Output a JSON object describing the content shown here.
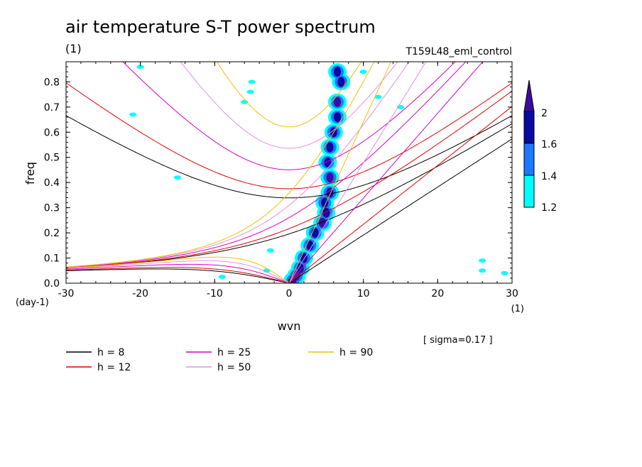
{
  "chart_data": {
    "type": "contour",
    "title": "air temperature S-T power spectrum",
    "subtitle": "(1)",
    "run_label": "T159L48_eml_control",
    "xlabel": "wvn",
    "ylabel": "freq",
    "x_unit": "(1)",
    "y_unit": "(day-1)",
    "xlim": [
      -30,
      30
    ],
    "ylim": [
      0,
      0.88
    ],
    "x_ticks": [
      -30,
      -20,
      -10,
      0,
      10,
      20,
      30
    ],
    "x_tick_labels": [
      "-30",
      "-20",
      "-10",
      "0",
      "10",
      "20",
      "30"
    ],
    "y_ticks": [
      0,
      0.1,
      0.2,
      0.3,
      0.4,
      0.5,
      0.6,
      0.7,
      0.8
    ],
    "y_tick_labels": [
      "0.0",
      "0.1",
      "0.2",
      "0.3",
      "0.4",
      "0.5",
      "0.6",
      "0.7",
      "0.8"
    ],
    "note": "[ sigma=0.17 ]",
    "colorbar": {
      "levels": [
        1.2,
        1.4,
        1.6,
        2
      ],
      "labels": [
        "1.2",
        "1.4",
        "1.6",
        "2"
      ],
      "colors": [
        "#00ffff",
        "#1e78ff",
        "#0a0aa0",
        "#3c0ca0"
      ]
    },
    "dispersion_curves": [
      {
        "name": "h =  8",
        "h": 8,
        "color": "#000000"
      },
      {
        "name": "h = 12",
        "h": 12,
        "color": "#e00000"
      },
      {
        "name": "h = 25",
        "h": 25,
        "color": "#d800c8"
      },
      {
        "name": "h = 50",
        "h": 50,
        "color": "#e090e0"
      },
      {
        "name": "h = 90",
        "h": 90,
        "color": "#f0c000"
      }
    ],
    "spectral_ridge": [
      {
        "x": 0.5,
        "y": 0.01,
        "level": 2.0
      },
      {
        "x": 1.0,
        "y": 0.03,
        "level": 2.0
      },
      {
        "x": 1.5,
        "y": 0.06,
        "level": 1.6
      },
      {
        "x": 2.0,
        "y": 0.1,
        "level": 1.6
      },
      {
        "x": 2.8,
        "y": 0.15,
        "level": 1.6
      },
      {
        "x": 3.5,
        "y": 0.2,
        "level": 1.6
      },
      {
        "x": 4.5,
        "y": 0.24,
        "level": 2.0
      },
      {
        "x": 5.0,
        "y": 0.28,
        "level": 1.6
      },
      {
        "x": 4.8,
        "y": 0.32,
        "level": 1.6
      },
      {
        "x": 5.5,
        "y": 0.36,
        "level": 1.6
      },
      {
        "x": 5.5,
        "y": 0.42,
        "level": 2.0
      },
      {
        "x": 5.2,
        "y": 0.48,
        "level": 1.6
      },
      {
        "x": 5.5,
        "y": 0.54,
        "level": 1.6
      },
      {
        "x": 6.0,
        "y": 0.6,
        "level": 1.6
      },
      {
        "x": 6.5,
        "y": 0.66,
        "level": 1.6
      },
      {
        "x": 6.5,
        "y": 0.72,
        "level": 2.0
      },
      {
        "x": 7.0,
        "y": 0.8,
        "level": 1.6
      },
      {
        "x": 6.5,
        "y": 0.84,
        "level": 1.4
      }
    ],
    "scattered_patches": [
      {
        "x": -9,
        "y": 0.025,
        "level": 1.2
      },
      {
        "x": -3,
        "y": 0.05,
        "level": 1.2
      },
      {
        "x": -2.5,
        "y": 0.13,
        "level": 1.2
      },
      {
        "x": -5,
        "y": 0.8,
        "level": 1.2
      },
      {
        "x": -5.2,
        "y": 0.76,
        "level": 1.2
      },
      {
        "x": -6,
        "y": 0.72,
        "level": 1.2
      },
      {
        "x": -21,
        "y": 0.67,
        "level": 1.2
      },
      {
        "x": -15,
        "y": 0.42,
        "level": 1.2
      },
      {
        "x": -20,
        "y": 0.86,
        "level": 1.2
      },
      {
        "x": 10,
        "y": 0.84,
        "level": 1.2
      },
      {
        "x": 12,
        "y": 0.74,
        "level": 1.2
      },
      {
        "x": 15,
        "y": 0.7,
        "level": 1.2
      },
      {
        "x": 26,
        "y": 0.05,
        "level": 1.2
      },
      {
        "x": 26,
        "y": 0.09,
        "level": 1.2
      },
      {
        "x": 29,
        "y": 0.04,
        "level": 1.2
      }
    ]
  }
}
